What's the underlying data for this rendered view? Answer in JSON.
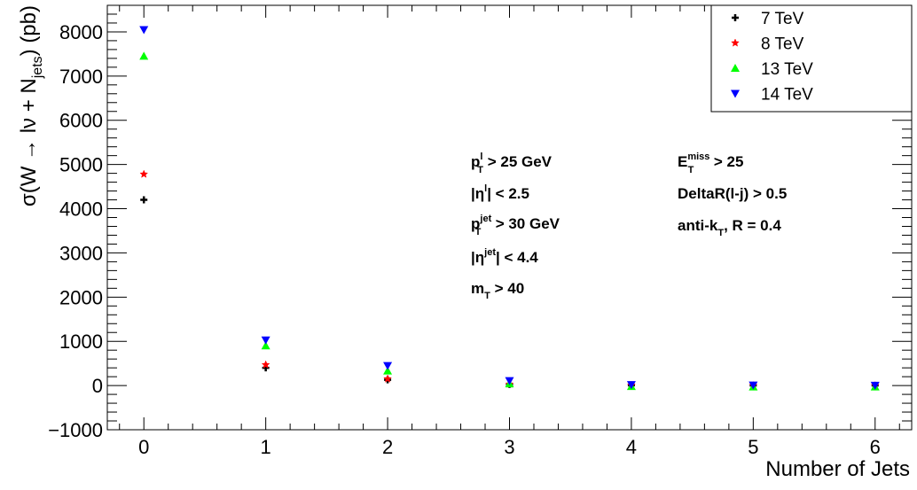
{
  "chart_data": {
    "type": "scatter",
    "xlabel": "Number of Jets",
    "ylabel_parts": {
      "a": "σ(W → lν + N",
      "sub": "jets",
      "b": ") (pb)"
    },
    "xlim": [
      -0.3,
      6.3
    ],
    "ylim": [
      -1000,
      8600
    ],
    "x_ticks": [
      "0",
      "1",
      "2",
      "3",
      "4",
      "5",
      "6"
    ],
    "y_ticks": [
      "−1000",
      "0",
      "1000",
      "2000",
      "3000",
      "4000",
      "5000",
      "6000",
      "7000",
      "8000"
    ],
    "x_tick_values": [
      0,
      1,
      2,
      3,
      4,
      5,
      6
    ],
    "y_tick_values": [
      -1000,
      0,
      1000,
      2000,
      3000,
      4000,
      5000,
      6000,
      7000,
      8000
    ],
    "x": [
      0,
      1,
      2,
      3,
      4,
      5,
      6
    ],
    "series": [
      {
        "name": "7 TeV",
        "marker": "cross",
        "color": "#000000",
        "values": [
          4200,
          400,
          130,
          25,
          5,
          2,
          1
        ]
      },
      {
        "name": "8 TeV",
        "marker": "star",
        "color": "#ff0000",
        "values": [
          4780,
          470,
          150,
          30,
          6,
          2,
          1
        ]
      },
      {
        "name": "13 TeV",
        "marker": "triangle-up",
        "color": "#00ff00",
        "values": [
          7450,
          900,
          330,
          40,
          -20,
          -30,
          -30
        ]
      },
      {
        "name": "14 TeV",
        "marker": "triangle-down",
        "color": "#0000ff",
        "values": [
          8050,
          1030,
          450,
          110,
          20,
          10,
          5
        ]
      }
    ],
    "legend_position": "top-right",
    "annotations_left": [
      {
        "base": "p",
        "sub": "T",
        "sup": "l",
        "rest": " > 25 GeV"
      },
      {
        "base": "|η",
        "sub": "",
        "sup": "l",
        "rest": "| < 2.5"
      },
      {
        "base": "p",
        "sub": "T",
        "sup": "jet",
        "rest": " > 30 GeV"
      },
      {
        "base": "|η",
        "sub": "",
        "sup": "jet",
        "rest": "| < 4.4"
      },
      {
        "base": "m",
        "sub": "T",
        "sup": "",
        "rest": " > 40"
      }
    ],
    "annotations_right": [
      {
        "base": "E",
        "sub": "T",
        "sup": "miss",
        "rest": " > 25"
      },
      {
        "base": "DeltaR(l-j) > 0.5",
        "sub": "",
        "sup": "",
        "rest": ""
      },
      {
        "base": "anti-k",
        "sub": "T",
        "sup": "",
        "rest": ", R = 0.4"
      }
    ]
  }
}
